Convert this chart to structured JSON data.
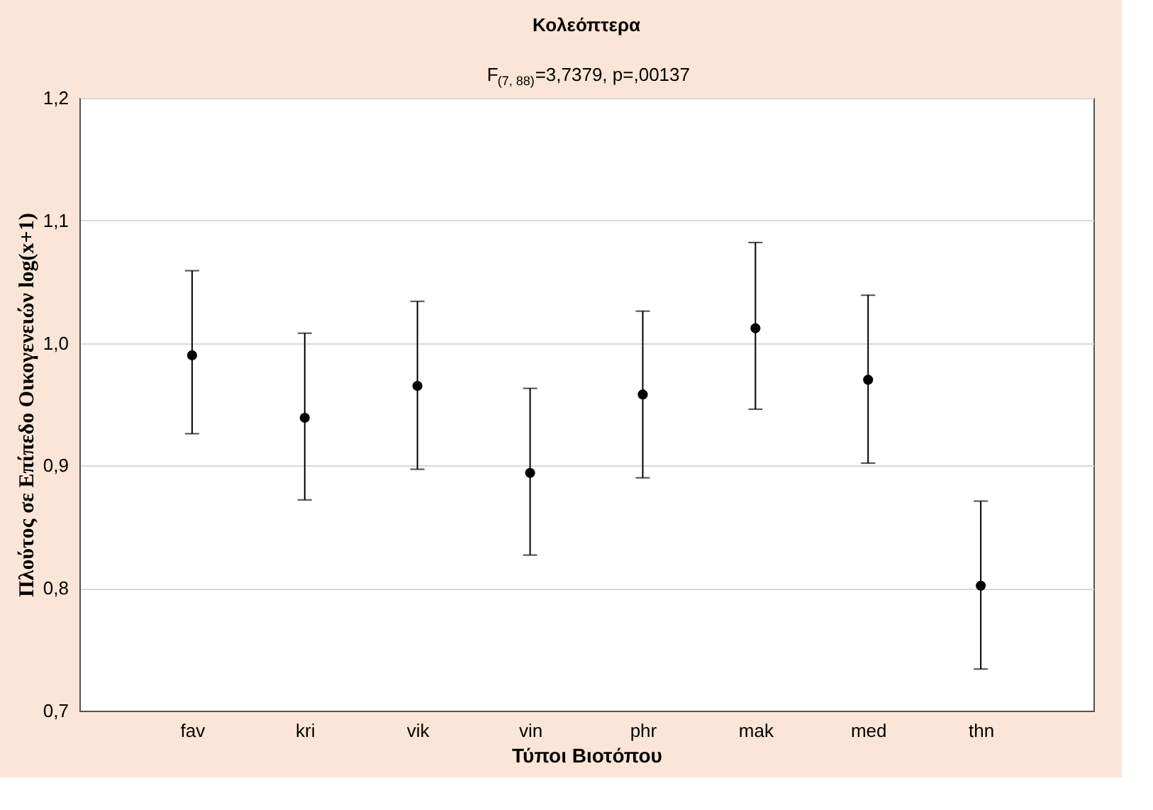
{
  "chart_data": {
    "type": "scatter",
    "title": "Κολεόπτερα",
    "subtitle": "F$_{(7, 88)}$=3,7379, p=,00137",
    "xlabel": "Τύποι Βιοτόπου",
    "ylabel": "Πλούτος σε Επίπεδο Οικογενειών log(x+1)",
    "categories": [
      "fav",
      "kri",
      "vik",
      "vin",
      "phr",
      "mak",
      "med",
      "thn"
    ],
    "series": [
      {
        "color": "#000000",
        "values": [
          0.99,
          0.939,
          0.965,
          0.894,
          0.958,
          1.012,
          0.97,
          0.802
        ],
        "errors": [
          [
            0.926,
            1.059
          ],
          [
            0.872,
            1.008
          ],
          [
            0.897,
            1.034
          ],
          [
            0.827,
            0.963
          ],
          [
            0.89,
            1.026
          ],
          [
            0.946,
            1.082
          ],
          [
            0.902,
            1.039
          ],
          [
            0.734,
            0.871
          ]
        ]
      }
    ],
    "ylim": [
      0.7,
      1.2
    ],
    "yticks": [
      {
        "value": 0.7,
        "label": "0,7"
      },
      {
        "value": 0.8,
        "label": "0,8"
      },
      {
        "value": 0.9,
        "label": "0,9"
      },
      {
        "value": 1.0,
        "label": "1,0"
      },
      {
        "value": 1.1,
        "label": "1,1"
      },
      {
        "value": 1.2,
        "label": "1,2"
      }
    ],
    "grid": "y",
    "marker": "circle"
  }
}
